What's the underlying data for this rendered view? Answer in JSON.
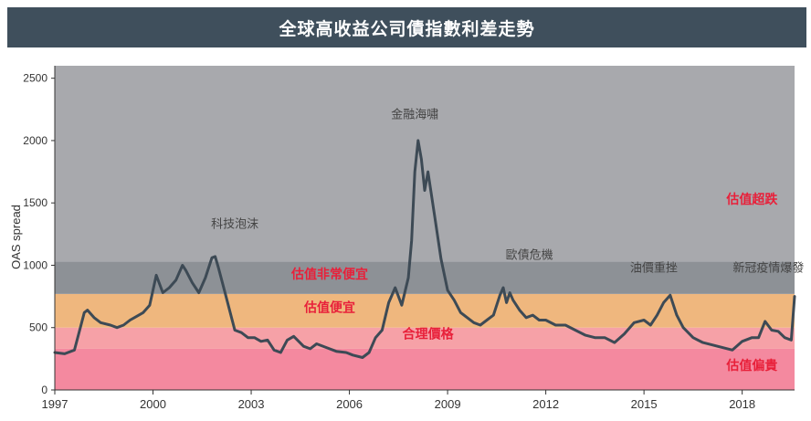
{
  "chart_data": {
    "type": "line",
    "title": "全球高收益公司債指數利差走勢",
    "xlabel": "",
    "ylabel": "OAS spread",
    "xlim": [
      1997,
      2019.6
    ],
    "ylim": [
      0,
      2600
    ],
    "y_ticks": [
      0,
      500,
      1000,
      1500,
      2000,
      2500
    ],
    "x_ticks": [
      1997,
      2000,
      2003,
      2006,
      2009,
      2012,
      2015,
      2018
    ],
    "bands": [
      {
        "name": "估值偏貴",
        "from": 0,
        "to": 330,
        "color": "#f4899f",
        "label_color": "#e8203a",
        "label_x": 2018.3,
        "label_y": 160
      },
      {
        "name": "合理價格",
        "from": 330,
        "to": 500,
        "color": "#f6a1a7",
        "label_color": "#e8203a",
        "label_x": 2008.4,
        "label_y": 415
      },
      {
        "name": "估值便宜",
        "from": 500,
        "to": 770,
        "color": "#efb77e",
        "label_color": "#e8203a",
        "label_x": 2005.4,
        "label_y": 625
      },
      {
        "name": "估值非常便宜",
        "from": 770,
        "to": 1030,
        "color": "#8d9196",
        "label_color": "#e8203a",
        "label_x": 2005.4,
        "label_y": 895
      },
      {
        "name": "估值超跌",
        "from": 1030,
        "to": 2600,
        "color": "#a8a9ad",
        "label_color": "#e8203a",
        "label_x": 2018.3,
        "label_y": 1495
      }
    ],
    "annotations": [
      {
        "text": "科技泡沫",
        "x": 2002.5,
        "y": 1300
      },
      {
        "text": "金融海嘯",
        "x": 2008.0,
        "y": 2180
      },
      {
        "text": "歐債危機",
        "x": 2011.5,
        "y": 1050
      },
      {
        "text": "油價重挫",
        "x": 2015.3,
        "y": 950
      },
      {
        "text": "新冠疫情爆發",
        "x": 2018.8,
        "y": 950
      }
    ],
    "series": [
      {
        "name": "",
        "color": "#3d4a55",
        "x": [
          1997.0,
          1997.3,
          1997.6,
          1997.8,
          1997.9,
          1998.0,
          1998.2,
          1998.4,
          1998.7,
          1998.9,
          1999.1,
          1999.3,
          1999.5,
          1999.7,
          1999.9,
          2000.1,
          2000.3,
          2000.5,
          2000.7,
          2000.9,
          2001.0,
          2001.2,
          2001.4,
          2001.6,
          2001.8,
          2001.9,
          2002.0,
          2002.2,
          2002.4,
          2002.5,
          2002.7,
          2002.9,
          2003.1,
          2003.3,
          2003.5,
          2003.7,
          2003.9,
          2004.1,
          2004.3,
          2004.6,
          2004.8,
          2005.0,
          2005.3,
          2005.6,
          2005.9,
          2006.1,
          2006.4,
          2006.6,
          2006.8,
          2007.0,
          2007.2,
          2007.4,
          2007.6,
          2007.8,
          2007.9,
          2008.0,
          2008.1,
          2008.2,
          2008.3,
          2008.4,
          2008.6,
          2008.8,
          2009.0,
          2009.2,
          2009.4,
          2009.6,
          2009.8,
          2010.0,
          2010.2,
          2010.4,
          2010.6,
          2010.7,
          2010.8,
          2010.9,
          2011.0,
          2011.2,
          2011.4,
          2011.6,
          2011.8,
          2012.0,
          2012.3,
          2012.6,
          2012.9,
          2013.2,
          2013.5,
          2013.8,
          2014.1,
          2014.4,
          2014.7,
          2015.0,
          2015.2,
          2015.4,
          2015.6,
          2015.8,
          2016.0,
          2016.2,
          2016.5,
          2016.8,
          2017.1,
          2017.4,
          2017.7,
          2018.0,
          2018.3,
          2018.5,
          2018.7,
          2018.9,
          2019.1,
          2019.3,
          2019.5,
          2019.6
        ],
        "y": [
          300,
          290,
          320,
          520,
          620,
          640,
          580,
          540,
          520,
          500,
          520,
          560,
          590,
          620,
          680,
          920,
          780,
          820,
          880,
          1000,
          960,
          860,
          780,
          900,
          1060,
          1070,
          980,
          780,
          580,
          480,
          460,
          420,
          420,
          390,
          400,
          320,
          300,
          400,
          430,
          350,
          330,
          370,
          340,
          310,
          300,
          280,
          260,
          300,
          420,
          480,
          700,
          820,
          680,
          900,
          1200,
          1750,
          2000,
          1850,
          1600,
          1750,
          1400,
          1050,
          800,
          720,
          620,
          580,
          540,
          520,
          560,
          600,
          760,
          820,
          700,
          780,
          720,
          640,
          580,
          600,
          560,
          560,
          520,
          520,
          480,
          440,
          420,
          420,
          380,
          450,
          540,
          560,
          520,
          600,
          700,
          760,
          600,
          500,
          420,
          380,
          360,
          340,
          320,
          390,
          420,
          420,
          550,
          480,
          470,
          420,
          400,
          750
        ]
      }
    ]
  }
}
